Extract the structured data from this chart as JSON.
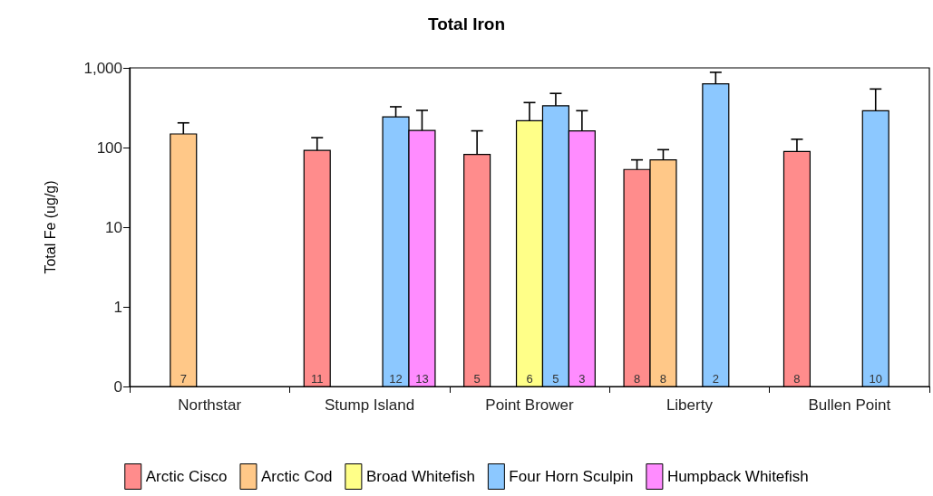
{
  "chart_data": {
    "type": "bar",
    "title": "Total Iron",
    "ylabel": "Total Fe (ug/g)",
    "categories": [
      "Northstar",
      "Stump Island",
      "Point Brower",
      "Liberty",
      "Bullen Point"
    ],
    "series": [
      {
        "name": "Arctic Cisco",
        "color": "#ff8c8c",
        "values": [
          null,
          92,
          82,
          53,
          89
        ],
        "errors": [
          null,
          [
            92,
            133
          ],
          [
            82,
            162
          ],
          [
            53,
            70
          ],
          [
            89,
            127
          ]
        ]
      },
      {
        "name": "Arctic Cod",
        "color": "#ffc888",
        "values": [
          148,
          null,
          null,
          70,
          null
        ],
        "errors": [
          [
            148,
            204
          ],
          null,
          null,
          [
            70,
            94
          ],
          null
        ]
      },
      {
        "name": "Broad Whitefish",
        "color": "#ffff88",
        "values": [
          null,
          null,
          217,
          null,
          null
        ],
        "errors": [
          null,
          null,
          [
            217,
            367
          ],
          null,
          null
        ]
      },
      {
        "name": "Four Horn Sculpin",
        "color": "#8cc8ff",
        "values": [
          null,
          243,
          335,
          630,
          290
        ],
        "errors": [
          null,
          [
            243,
            325
          ],
          [
            335,
            478
          ],
          [
            630,
            880
          ],
          [
            290,
            543
          ]
        ]
      },
      {
        "name": "Humpback Whitefish",
        "color": "#ff8cff",
        "values": [
          null,
          164,
          162,
          null,
          null
        ],
        "errors": [
          null,
          [
            164,
            293
          ],
          [
            162,
            290
          ],
          null,
          null
        ]
      }
    ],
    "annotations": [
      "7",
      "11",
      "12",
      "13",
      "5",
      "6",
      "5",
      "3",
      "8",
      "8",
      "2",
      "8",
      "10"
    ],
    "log": "y",
    "ylim": [
      0.1,
      1000
    ],
    "yticks": [
      {
        "value": 0.1,
        "label": "0"
      },
      1,
      10,
      100,
      {
        "value": 1000,
        "label": "1,000"
      }
    ],
    "grid": false,
    "legend": "bottom"
  }
}
